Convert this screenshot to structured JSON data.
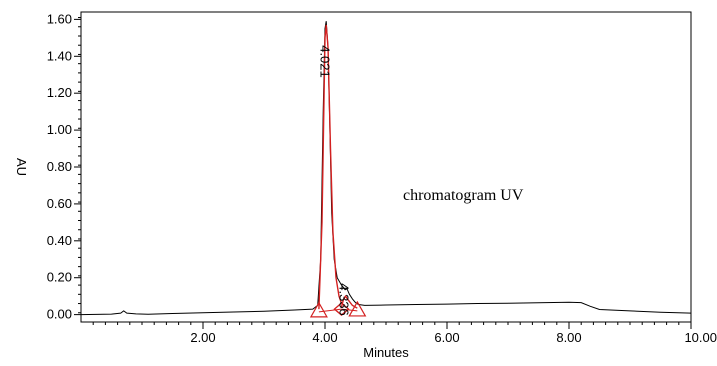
{
  "chart_data": {
    "type": "line",
    "xlabel": "Minutes",
    "ylabel": "AU",
    "xlim": [
      0.0,
      10.0
    ],
    "ylim": [
      -0.04,
      1.64
    ],
    "x_ticks": [
      {
        "value": 2.0,
        "label": "2.00"
      },
      {
        "value": 4.0,
        "label": "4.00"
      },
      {
        "value": 6.0,
        "label": "6.00"
      },
      {
        "value": 8.0,
        "label": "8.00"
      },
      {
        "value": 10.0,
        "label": "10.00"
      }
    ],
    "x_minor_step": 0.2,
    "y_ticks": [
      {
        "value": 0.0,
        "label": "0.00"
      },
      {
        "value": 0.2,
        "label": "0.20"
      },
      {
        "value": 0.4,
        "label": "0.40"
      },
      {
        "value": 0.6,
        "label": "0.60"
      },
      {
        "value": 0.8,
        "label": "0.80"
      },
      {
        "value": 1.0,
        "label": "1.00"
      },
      {
        "value": 1.2,
        "label": "1.20"
      },
      {
        "value": 1.4,
        "label": "1.40"
      },
      {
        "value": 1.6,
        "label": "1.60"
      }
    ],
    "y_minor_step": 0.05,
    "grid": false,
    "annotation": "chromatogram UV",
    "trace": {
      "color": "#000000",
      "points": [
        [
          0.0,
          0.0
        ],
        [
          0.5,
          0.003
        ],
        [
          0.65,
          0.008
        ],
        [
          0.7,
          0.02
        ],
        [
          0.75,
          0.008
        ],
        [
          0.9,
          0.004
        ],
        [
          1.1,
          0.002
        ],
        [
          1.5,
          0.006
        ],
        [
          2.0,
          0.01
        ],
        [
          2.5,
          0.014
        ],
        [
          3.0,
          0.018
        ],
        [
          3.5,
          0.025
        ],
        [
          3.8,
          0.03
        ],
        [
          3.88,
          0.05
        ],
        [
          3.93,
          0.3
        ],
        [
          3.97,
          1.1
        ],
        [
          4.0,
          1.55
        ],
        [
          4.02,
          1.59
        ],
        [
          4.05,
          1.45
        ],
        [
          4.08,
          1.0
        ],
        [
          4.11,
          0.55
        ],
        [
          4.15,
          0.3
        ],
        [
          4.2,
          0.2
        ],
        [
          4.27,
          0.16
        ],
        [
          4.33,
          0.135
        ],
        [
          4.36,
          0.14
        ],
        [
          4.4,
          0.11
        ],
        [
          4.45,
          0.085
        ],
        [
          4.5,
          0.065
        ],
        [
          4.55,
          0.055
        ],
        [
          4.65,
          0.05
        ],
        [
          5.0,
          0.052
        ],
        [
          5.5,
          0.055
        ],
        [
          6.0,
          0.057
        ],
        [
          6.5,
          0.06
        ],
        [
          7.0,
          0.062
        ],
        [
          7.5,
          0.064
        ],
        [
          8.0,
          0.067
        ],
        [
          8.2,
          0.065
        ],
        [
          8.35,
          0.045
        ],
        [
          8.5,
          0.028
        ],
        [
          9.0,
          0.02
        ],
        [
          9.5,
          0.013
        ],
        [
          10.0,
          0.008
        ]
      ]
    },
    "peaks": [
      {
        "label": "4.021",
        "rt": 4.021,
        "color": "#d42020",
        "fit_points": [
          [
            3.9,
            0.03
          ],
          [
            3.95,
            0.5
          ],
          [
            4.0,
            1.5
          ],
          [
            4.02,
            1.57
          ],
          [
            4.05,
            1.45
          ],
          [
            4.09,
            0.9
          ],
          [
            4.13,
            0.45
          ],
          [
            4.18,
            0.2
          ],
          [
            4.23,
            0.1
          ],
          [
            4.27,
            0.06
          ]
        ],
        "baseline": [
          [
            3.9,
            0.015
          ],
          [
            4.27,
            0.03
          ]
        ],
        "start_marker": {
          "x": 3.9,
          "y": 0.015,
          "shape": "triangle"
        },
        "end_marker": {
          "x": 4.27,
          "y": 0.03,
          "shape": "diamond"
        }
      },
      {
        "label": "4.336",
        "rt": 4.336,
        "color": "#d42020",
        "fit_points": [
          [
            4.27,
            0.04
          ],
          [
            4.3,
            0.08
          ],
          [
            4.336,
            0.1
          ],
          [
            4.38,
            0.08
          ],
          [
            4.45,
            0.05
          ],
          [
            4.53,
            0.035
          ]
        ],
        "baseline": [
          [
            4.27,
            0.03
          ],
          [
            4.53,
            0.02
          ]
        ],
        "start_marker": {
          "x": 4.27,
          "y": 0.03,
          "shape": "diamond"
        },
        "end_marker": {
          "x": 4.53,
          "y": 0.02,
          "shape": "triangle"
        }
      }
    ]
  }
}
